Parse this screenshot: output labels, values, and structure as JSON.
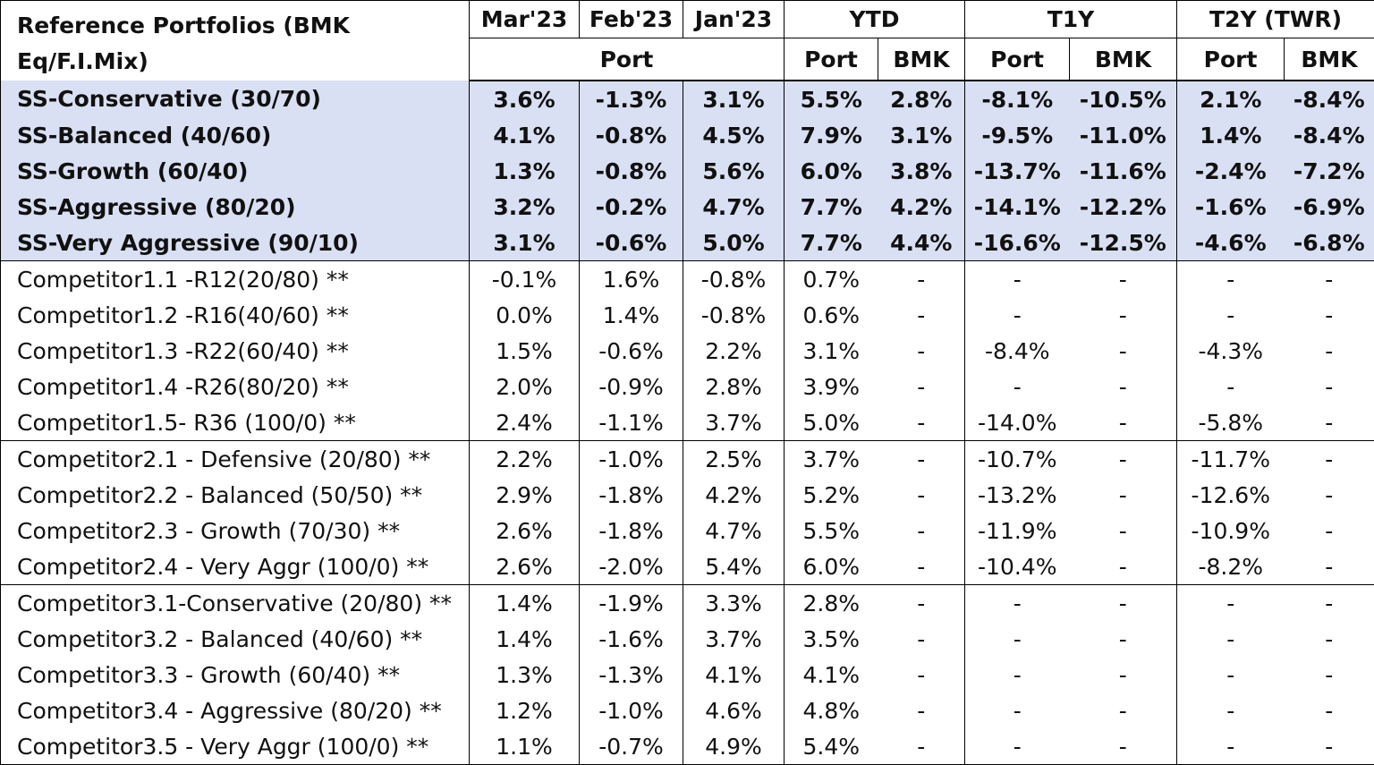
{
  "headers": {
    "title": "Reference Portfolios (BMK Eq/F.I.Mix)",
    "mar": "Mar'23",
    "feb": "Feb'23",
    "jan": "Jan'23",
    "ytd": "YTD",
    "t1y": "T1Y",
    "t2y": "T2Y (TWR)",
    "port_span": "Port",
    "ytd_port": "Port",
    "ytd_bmk": "BMK",
    "t1y_port": "Port",
    "t1y_bmk": "BMK",
    "t2y_port": "Port",
    "t2y_bmk": "BMK"
  },
  "ss_rows": [
    {
      "name": "SS-Conservative (30/70)",
      "vals": [
        "3.6%",
        "-1.3%",
        "3.1%",
        "5.5%",
        "2.8%",
        "-8.1%",
        "-10.5%",
        "2.1%",
        "-8.4%"
      ]
    },
    {
      "name": "SS-Balanced (40/60)",
      "vals": [
        "4.1%",
        "-0.8%",
        "4.5%",
        "7.9%",
        "3.1%",
        "-9.5%",
        "-11.0%",
        "1.4%",
        "-8.4%"
      ]
    },
    {
      "name": "SS-Growth (60/40)",
      "vals": [
        "1.3%",
        "-0.8%",
        "5.6%",
        "6.0%",
        "3.8%",
        "-13.7%",
        "-11.6%",
        "-2.4%",
        "-7.2%"
      ]
    },
    {
      "name": "SS-Aggressive (80/20)",
      "vals": [
        "3.2%",
        "-0.2%",
        "4.7%",
        "7.7%",
        "4.2%",
        "-14.1%",
        "-12.2%",
        "-1.6%",
        "-6.9%"
      ]
    },
    {
      "name": "SS-Very Aggressive (90/10)",
      "vals": [
        "3.1%",
        "-0.6%",
        "5.0%",
        "7.7%",
        "4.4%",
        "-16.6%",
        "-12.5%",
        "-4.6%",
        "-6.8%"
      ]
    }
  ],
  "comp_groups": [
    [
      {
        "name": "Competitor1.1 -R12(20/80) **",
        "vals": [
          "-0.1%",
          "1.6%",
          "-0.8%",
          "0.7%",
          "-",
          "-",
          "-",
          "-",
          "-"
        ]
      },
      {
        "name": "Competitor1.2 -R16(40/60) **",
        "vals": [
          "0.0%",
          "1.4%",
          "-0.8%",
          "0.6%",
          "-",
          "-",
          "-",
          "-",
          "-"
        ]
      },
      {
        "name": "Competitor1.3 -R22(60/40) **",
        "vals": [
          "1.5%",
          "-0.6%",
          "2.2%",
          "3.1%",
          "-",
          "-8.4%",
          "-",
          "-4.3%",
          "-"
        ]
      },
      {
        "name": "Competitor1.4 -R26(80/20) **",
        "vals": [
          "2.0%",
          "-0.9%",
          "2.8%",
          "3.9%",
          "-",
          "-",
          "-",
          "-",
          "-"
        ]
      },
      {
        "name": "Competitor1.5- R36 (100/0) **",
        "vals": [
          "2.4%",
          "-1.1%",
          "3.7%",
          "5.0%",
          "-",
          "-14.0%",
          "-",
          "-5.8%",
          "-"
        ]
      }
    ],
    [
      {
        "name": "Competitor2.1  - Defensive  (20/80) **",
        "vals": [
          "2.2%",
          "-1.0%",
          "2.5%",
          "3.7%",
          "-",
          "-10.7%",
          "-",
          "-11.7%",
          "-"
        ]
      },
      {
        "name": "Competitor2.2  - Balanced  (50/50) **",
        "vals": [
          "2.9%",
          "-1.8%",
          "4.2%",
          "5.2%",
          "-",
          "-13.2%",
          "-",
          "-12.6%",
          "-"
        ]
      },
      {
        "name": "Competitor2.3  - Growth  (70/30) **",
        "vals": [
          "2.6%",
          "-1.8%",
          "4.7%",
          "5.5%",
          "-",
          "-11.9%",
          "-",
          "-10.9%",
          "-"
        ]
      },
      {
        "name": "Competitor2.4  - Very Aggr  (100/0) **",
        "vals": [
          "2.6%",
          "-2.0%",
          "5.4%",
          "6.0%",
          "-",
          "-10.4%",
          "-",
          "-8.2%",
          "-"
        ]
      }
    ],
    [
      {
        "name": "Competitor3.1-Conservative (20/80) **",
        "vals": [
          "1.4%",
          "-1.9%",
          "3.3%",
          "2.8%",
          "-",
          "-",
          "-",
          "-",
          "-"
        ]
      },
      {
        "name": "Competitor3.2 - Balanced  (40/60) **",
        "vals": [
          "1.4%",
          "-1.6%",
          "3.7%",
          "3.5%",
          "-",
          "-",
          "-",
          "-",
          "-"
        ]
      },
      {
        "name": "Competitor3.3 - Growth  (60/40) **",
        "vals": [
          "1.3%",
          "-1.3%",
          "4.1%",
          "4.1%",
          "-",
          "-",
          "-",
          "-",
          "-"
        ]
      },
      {
        "name": "Competitor3.4 - Aggressive  (80/20) **",
        "vals": [
          "1.2%",
          "-1.0%",
          "4.6%",
          "4.8%",
          "-",
          "-",
          "-",
          "-",
          "-"
        ]
      },
      {
        "name": "Competitor3.5  - Very Aggr (100/0) **",
        "vals": [
          "1.1%",
          "-0.7%",
          "4.9%",
          "5.4%",
          "-",
          "-",
          "-",
          "-",
          "-"
        ]
      }
    ]
  ]
}
